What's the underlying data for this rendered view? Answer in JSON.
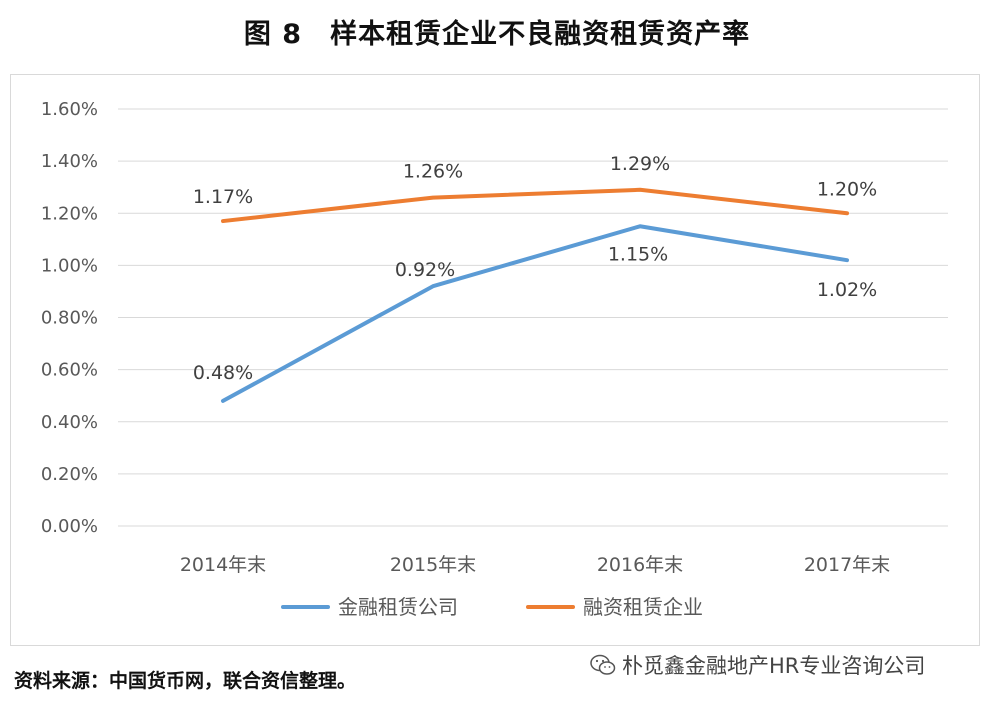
{
  "figure": {
    "number": "图 8",
    "title": "样本租赁企业不良融资租赁资产率"
  },
  "source_note": "资料来源：中国货币网，联合资信整理。",
  "watermark": {
    "text": "朴觅鑫金融地产HR专业咨询公司",
    "icon": "wechat-icon"
  },
  "colors": {
    "blue": "#5b9bd5",
    "orange": "#ed7d31",
    "grid": "#d9d9d9"
  },
  "chart_data": {
    "type": "line",
    "title": "样本租赁企业不良融资租赁资产率",
    "categories": [
      "2014年末",
      "2015年末",
      "2016年末",
      "2017年末"
    ],
    "series": [
      {
        "name": "金融租赁公司",
        "values": [
          0.48,
          0.92,
          1.15,
          1.02
        ],
        "labels": [
          "0.48%",
          "0.92%",
          "1.15%",
          "1.02%"
        ],
        "color": "#5b9bd5"
      },
      {
        "name": "融资租赁企业",
        "values": [
          1.17,
          1.26,
          1.29,
          1.2
        ],
        "labels": [
          "1.17%",
          "1.26%",
          "1.29%",
          "1.20%"
        ],
        "color": "#ed7d31"
      }
    ],
    "yticks": [
      "0.00%",
      "0.20%",
      "0.40%",
      "0.60%",
      "0.80%",
      "1.00%",
      "1.20%",
      "1.40%",
      "1.60%"
    ],
    "ylim": [
      0,
      1.6
    ],
    "ystep": 0.2,
    "grid": true,
    "legend": "bottom",
    "xlabel": "",
    "ylabel": ""
  }
}
